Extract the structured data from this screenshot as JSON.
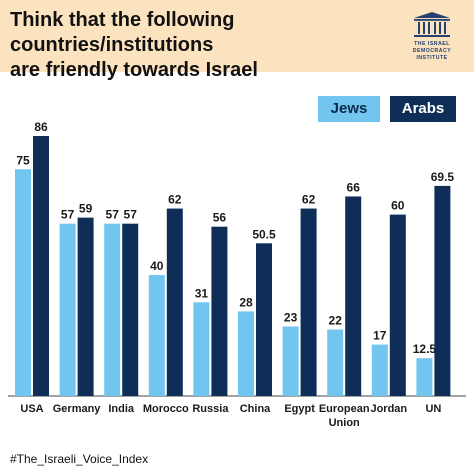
{
  "header": {
    "title_line1": "Think that the following countries/institutions",
    "title_line2": "are friendly towards Israel",
    "logo_lines": [
      "THE ISRAEL",
      "DEMOCRACY",
      "INSTITUTE"
    ]
  },
  "legend": {
    "jews": "Jews",
    "arabs": "Arabs"
  },
  "footer": {
    "hashtag": "#The_Israeli_Voice_Index"
  },
  "colors": {
    "jews": "#72c5ee",
    "arabs": "#0e2e57",
    "title_band": "#fbe3bf"
  },
  "chart_data": {
    "type": "bar",
    "title": "Think that the following countries/institutions are friendly towards Israel",
    "categories": [
      [
        "USA"
      ],
      [
        "Germany"
      ],
      [
        "India"
      ],
      [
        "Morocco"
      ],
      [
        "Russia"
      ],
      [
        "China"
      ],
      [
        "Egypt"
      ],
      [
        "European",
        "Union"
      ],
      [
        "Jordan"
      ],
      [
        "UN"
      ]
    ],
    "series": [
      {
        "name": "Jews",
        "values": [
          75,
          57,
          57,
          40,
          31,
          28,
          23,
          22,
          17,
          12.5
        ]
      },
      {
        "name": "Arabs",
        "values": [
          86,
          59,
          57,
          62,
          56,
          50.5,
          62,
          66,
          60,
          69.5
        ]
      }
    ],
    "ylim": [
      0,
      86
    ],
    "grid": false,
    "legend_position": "top-right"
  }
}
